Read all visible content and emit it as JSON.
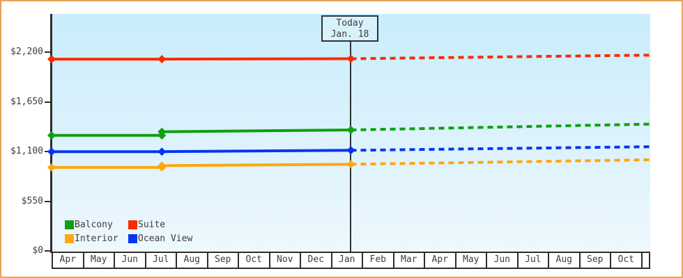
{
  "frame": {
    "border_color": "#e9a257"
  },
  "colors": {
    "axis": "#2e2e2e",
    "text": "#3c3c3c",
    "plot_bg_top": "#c9edfb",
    "plot_bg_bottom": "#eef8fd",
    "today_box_bg": "#d8f2fc"
  },
  "today_label": {
    "line1": "Today",
    "line2": "Jan. 18"
  },
  "legend": {
    "rows": [
      [
        {
          "label": "Balcony",
          "color": "#0fa00f"
        },
        {
          "label": "Suite",
          "color": "#f92b00"
        }
      ],
      [
        {
          "label": "Interior",
          "color": "#ffa70c"
        },
        {
          "label": "Ocean View",
          "color": "#0435f2"
        }
      ]
    ]
  },
  "chart_data": {
    "type": "line",
    "title": "",
    "xlabel": "",
    "ylabel": "",
    "grid": false,
    "x_categories": [
      "Apr",
      "May",
      "Jun",
      "Jul",
      "Aug",
      "Sep",
      "Oct",
      "Nov",
      "Dec",
      "Jan",
      "Feb",
      "Mar",
      "Apr",
      "May",
      "Jun",
      "Jul",
      "Aug",
      "Sep",
      "Oct"
    ],
    "x_unit": "month index, 0 = start of first Apr",
    "y_ticks": [
      {
        "label": "$0",
        "value": 0
      },
      {
        "label": "$550",
        "value": 550
      },
      {
        "label": "$1,100",
        "value": 1100
      },
      {
        "label": "$1,650",
        "value": 1650
      },
      {
        "label": "$2,200",
        "value": 2200
      }
    ],
    "ylim": [
      0,
      2630
    ],
    "today": {
      "label": "Today",
      "date": "Jan. 18",
      "month_index": 9.5
    },
    "legend_position": "bottom-left inside plot",
    "series": [
      {
        "name": "Suite",
        "color": "#f92b00",
        "solid_points": [
          {
            "x": 0,
            "y": 2125
          },
          {
            "x": 3.5,
            "y": 2125
          },
          {
            "x": 9.5,
            "y": 2130
          }
        ],
        "dashed_points": [
          {
            "x": 9.5,
            "y": 2130
          },
          {
            "x": 19,
            "y": 2170
          }
        ],
        "marker_points": [
          {
            "x": 0,
            "y": 2125
          },
          {
            "x": 3.5,
            "y": 2125
          },
          {
            "x": 9.5,
            "y": 2130
          }
        ]
      },
      {
        "name": "Balcony",
        "color": "#0fa00f",
        "solid_points": [
          {
            "x": 0,
            "y": 1280
          },
          {
            "x": 3.5,
            "y": 1280
          },
          {
            "x": 3.5,
            "y": 1320
          },
          {
            "x": 9.5,
            "y": 1340
          }
        ],
        "dashed_points": [
          {
            "x": 9.5,
            "y": 1340
          },
          {
            "x": 19,
            "y": 1405
          }
        ],
        "marker_points": [
          {
            "x": 0,
            "y": 1280
          },
          {
            "x": 3.5,
            "y": 1280
          },
          {
            "x": 3.5,
            "y": 1320
          },
          {
            "x": 9.5,
            "y": 1340
          }
        ]
      },
      {
        "name": "Ocean View",
        "color": "#0435f2",
        "solid_points": [
          {
            "x": 0,
            "y": 1100
          },
          {
            "x": 3.5,
            "y": 1100
          },
          {
            "x": 9.5,
            "y": 1115
          }
        ],
        "dashed_points": [
          {
            "x": 9.5,
            "y": 1115
          },
          {
            "x": 19,
            "y": 1155
          }
        ],
        "marker_points": [
          {
            "x": 0,
            "y": 1100
          },
          {
            "x": 3.5,
            "y": 1100
          },
          {
            "x": 9.5,
            "y": 1115
          }
        ]
      },
      {
        "name": "Interior",
        "color": "#ffa70c",
        "solid_points": [
          {
            "x": 0,
            "y": 925
          },
          {
            "x": 3.5,
            "y": 925
          },
          {
            "x": 3.5,
            "y": 945
          },
          {
            "x": 9.5,
            "y": 960
          }
        ],
        "dashed_points": [
          {
            "x": 9.5,
            "y": 960
          },
          {
            "x": 19,
            "y": 1010
          }
        ],
        "marker_points": [
          {
            "x": 0,
            "y": 925
          },
          {
            "x": 3.5,
            "y": 925
          },
          {
            "x": 3.5,
            "y": 945
          },
          {
            "x": 9.5,
            "y": 960
          }
        ]
      }
    ]
  }
}
